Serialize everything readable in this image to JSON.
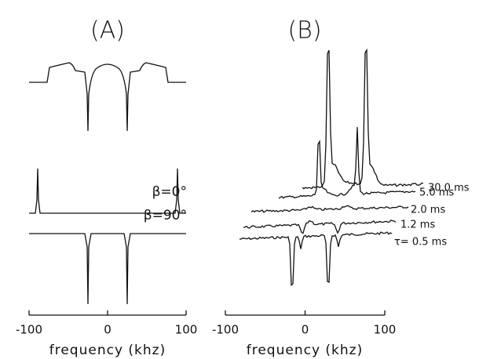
{
  "chart_data": [
    {
      "type": "line",
      "title": "(A)",
      "xlabel": "frequency (khz)",
      "xlim": [
        -100,
        100
      ],
      "xticks": [
        -100,
        0,
        100
      ],
      "annotations": [
        "β=0°",
        "β=90°"
      ]
    },
    {
      "type": "line",
      "title": "(B)",
      "xlabel": "frequency (khz)",
      "xlim": [
        -100,
        100
      ],
      "xticks": [
        -100,
        0,
        100
      ],
      "annotations": [
        "30.0 ms",
        "5.0 ms",
        "2.0 ms",
        "1.2 ms",
        "τ= 0.5 ms"
      ]
    }
  ]
}
